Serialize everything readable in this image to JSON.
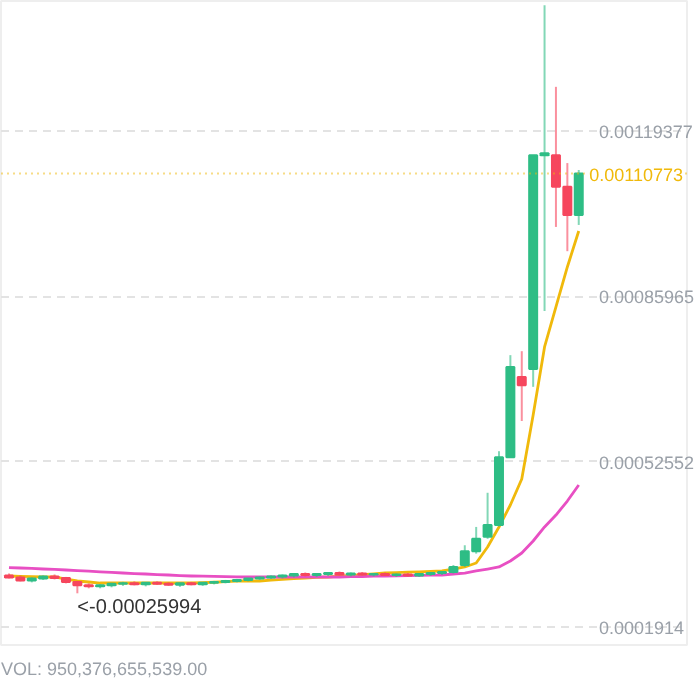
{
  "chart_data": {
    "type": "candlestick",
    "categories": [
      null,
      null,
      null,
      null,
      null,
      null,
      null,
      null,
      null,
      null,
      null,
      null,
      null,
      null,
      null,
      null,
      null,
      null,
      null,
      null,
      null,
      null,
      null,
      null,
      null,
      null,
      null,
      null,
      null,
      null,
      null,
      null,
      null,
      null,
      null,
      null,
      null,
      null,
      null,
      null,
      null,
      null,
      null,
      null,
      null,
      null,
      null,
      null,
      null,
      null,
      null
    ],
    "ohlc": [
      [
        0.000296,
        0.0003,
        0.00029,
        0.000292
      ],
      [
        0.000292,
        0.000296,
        0.000284,
        0.000286
      ],
      [
        0.000286,
        0.000292,
        0.000282,
        0.00029
      ],
      [
        0.00029,
        0.000296,
        0.000287,
        0.000294
      ],
      [
        0.000294,
        0.000298,
        0.000288,
        0.000291
      ],
      [
        0.000291,
        0.000293,
        0.00028,
        0.000283
      ],
      [
        0.000283,
        0.000285,
        0.00025994,
        0.000276
      ],
      [
        0.000276,
        0.00028,
        0.00027,
        0.000274
      ],
      [
        0.000274,
        0.000278,
        0.00027,
        0.000276
      ],
      [
        0.000276,
        0.000281,
        0.000272,
        0.000279
      ],
      [
        0.000279,
        0.000283,
        0.000275,
        0.00028
      ],
      [
        0.00028,
        0.000284,
        0.000276,
        0.000278
      ],
      [
        0.000278,
        0.000282,
        0.000274,
        0.000281
      ],
      [
        0.000281,
        0.000284,
        0.000277,
        0.000279
      ],
      [
        0.000279,
        0.000282,
        0.000275,
        0.000277
      ],
      [
        0.000277,
        0.000281,
        0.000273,
        0.00028
      ],
      [
        0.00028,
        0.000283,
        0.000276,
        0.000278
      ],
      [
        0.000278,
        0.000282,
        0.000275,
        0.000281
      ],
      [
        0.000281,
        0.000285,
        0.000278,
        0.000283
      ],
      [
        0.000283,
        0.000287,
        0.00028,
        0.000285
      ],
      [
        0.000285,
        0.000289,
        0.000282,
        0.000287
      ],
      [
        0.000287,
        0.000291,
        0.000284,
        0.00029
      ],
      [
        0.00029,
        0.000294,
        0.000287,
        0.000292
      ],
      [
        0.000292,
        0.000296,
        0.000289,
        0.000294
      ],
      [
        0.000294,
        0.000298,
        0.00029,
        0.000296
      ],
      [
        0.000296,
        0.0003,
        0.000292,
        0.000299
      ],
      [
        0.000299,
        0.000302,
        0.000294,
        0.000297
      ],
      [
        0.000297,
        0.000301,
        0.000293,
        0.000299
      ],
      [
        0.000299,
        0.000303,
        0.000295,
        0.000301
      ],
      [
        0.000301,
        0.000304,
        0.000296,
        0.000298
      ],
      [
        0.000298,
        0.000302,
        0.000294,
        0.0003
      ],
      [
        0.0003,
        0.000303,
        0.000296,
        0.000298
      ],
      [
        0.000298,
        0.000301,
        0.000294,
        0.000299
      ],
      [
        0.000299,
        0.000302,
        0.000295,
        0.000297
      ],
      [
        0.000297,
        0.0003,
        0.000293,
        0.000298
      ],
      [
        0.000298,
        0.000301,
        0.000294,
        0.000296
      ],
      [
        0.000296,
        0.0003,
        0.000293,
        0.000299
      ],
      [
        0.000299,
        0.000303,
        0.000295,
        0.000301
      ],
      [
        0.000301,
        0.000305,
        0.000297,
        0.000303
      ],
      [
        0.000303,
        0.000317,
        0.0003,
        0.000313
      ],
      [
        0.000317,
        0.000357,
        0.000313,
        0.000345
      ],
      [
        0.000345,
        0.000394,
        0.00034,
        0.00037
      ],
      [
        0.000374,
        0.000463,
        0.00037,
        0.000398
      ],
      [
        0.000398,
        0.000547,
        0.000395,
        0.000535
      ],
      [
        0.000535,
        0.000741,
        0.000535,
        0.000717
      ],
      [
        0.000697,
        0.000749,
        0.000608,
        0.00068
      ],
      [
        0.000713,
        0.001145,
        0.000677,
        0.001145
      ],
      [
        0.001145,
        0.001448,
        0.00083,
        0.001149
      ],
      [
        0.001145,
        0.001283,
        0.001,
        0.001081
      ],
      [
        0.001081,
        0.001129,
        0.000951,
        0.001024
      ],
      [
        0.001024,
        0.001115,
        0.001004,
        0.00110773
      ]
    ],
    "colors": [
      "#f6465d",
      "#f6465d",
      "#2ebd85",
      "#2ebd85",
      "#f6465d",
      "#f6465d",
      "#f6465d",
      "#f6465d",
      "#2ebd85",
      "#2ebd85",
      "#2ebd85",
      "#f6465d",
      "#2ebd85",
      "#f6465d",
      "#f6465d",
      "#2ebd85",
      "#f6465d",
      "#2ebd85",
      "#2ebd85",
      "#2ebd85",
      "#2ebd85",
      "#2ebd85",
      "#2ebd85",
      "#2ebd85",
      "#2ebd85",
      "#2ebd85",
      "#f6465d",
      "#2ebd85",
      "#2ebd85",
      "#f6465d",
      "#2ebd85",
      "#f6465d",
      "#2ebd85",
      "#f6465d",
      "#2ebd85",
      "#f6465d",
      "#2ebd85",
      "#2ebd85",
      "#2ebd85",
      "#2ebd85",
      "#2ebd85",
      "#2ebd85",
      "#2ebd85",
      "#2ebd85",
      "#2ebd85",
      "#f6465d",
      "#2ebd85",
      "#2ebd85",
      "#f6465d",
      "#f6465d",
      "#2ebd85"
    ],
    "series": [
      {
        "type": "line",
        "color": "#f0b90b",
        "values": [
          0.0002949,
          0.0002941,
          0.0002937,
          0.0002929,
          0.0002929,
          0.0002888,
          0.0002848,
          0.0002828,
          0.0002807,
          0.0002807,
          0.0002807,
          0.0002807,
          0.0002807,
          0.0002807,
          0.0002807,
          0.0002807,
          0.0002807,
          0.0002815,
          0.0002823,
          0.0002836,
          0.0002848,
          0.0002848,
          0.0002848,
          0.0002864,
          0.000288,
          0.0002896,
          0.0002908,
          0.000292,
          0.0002929,
          0.0002945,
          0.0002961,
          0.0002977,
          0.0002993,
          0.0003009,
          0.0003017,
          0.0003026,
          0.0003034,
          0.0003042,
          0.000305,
          0.000309,
          0.0003131,
          0.0003211,
          0.0003535,
          0.0003939,
          0.0004383,
          0.0004908,
          0.0006201,
          0.0007575,
          0.0008383,
          0.0009191,
          0.0009918
        ]
      },
      {
        "type": "line",
        "color": "#e84fc3",
        "values": [
          0.0003118,
          0.000311,
          0.0003102,
          0.000309,
          0.0003082,
          0.000307,
          0.0003058,
          0.0003046,
          0.0003034,
          0.0003021,
          0.0003009,
          0.0002997,
          0.0002989,
          0.0002977,
          0.0002969,
          0.0002957,
          0.0002949,
          0.0002945,
          0.0002941,
          0.0002937,
          0.0002933,
          0.0002929,
          0.0002929,
          0.0002929,
          0.0002929,
          0.0002929,
          0.0002929,
          0.0002929,
          0.0002929,
          0.0002929,
          0.0002937,
          0.0002937,
          0.0002945,
          0.0002949,
          0.0002953,
          0.0002957,
          0.0002961,
          0.0002965,
          0.0002969,
          0.0002989,
          0.0003009,
          0.000305,
          0.000309,
          0.0003131,
          0.0003252,
          0.0003413,
          0.0003656,
          0.0003939,
          0.000418,
          0.0004463,
          0.0004787
        ]
      }
    ],
    "ylim": [
      0.0001555,
      0.0014564
    ],
    "yticks": [
      {
        "value": 0.0001914,
        "label": "0.0001914"
      },
      {
        "value": 0.00052552,
        "label": "0.00052552"
      },
      {
        "value": 0.00085965,
        "label": "0.00085965"
      },
      {
        "value": 0.00119377,
        "label": "0.00119377"
      }
    ],
    "grid": "y",
    "ref_lines": [
      {
        "axis": "y",
        "value": 0.00110773,
        "label": "0.00110773",
        "color": "#f0b90b",
        "line_style": "dotted"
      }
    ],
    "annotations": [
      {
        "text": "<-0.00025994",
        "y": 0.00025994
      },
      "VOL: 950,376,655,539.00"
    ]
  }
}
